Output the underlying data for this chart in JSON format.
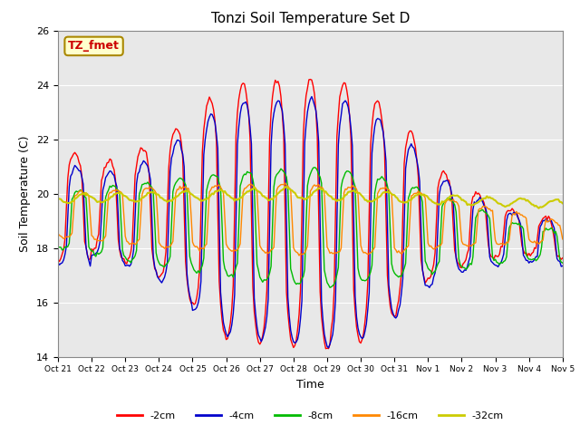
{
  "title": "Tonzi Soil Temperature Set D",
  "xlabel": "Time",
  "ylabel": "Soil Temperature (C)",
  "ylim": [
    14,
    26
  ],
  "xlim": [
    0,
    360
  ],
  "bg_color": "#e8e8e8",
  "fig_bg": "#ffffff",
  "annotation_text": "TZ_fmet",
  "annotation_bg": "#ffffcc",
  "annotation_border": "#aa8800",
  "annotation_color": "#cc0000",
  "lines": {
    "-2cm": {
      "color": "#ff0000",
      "lw": 1.0
    },
    "-4cm": {
      "color": "#0000cc",
      "lw": 1.0
    },
    "-8cm": {
      "color": "#00bb00",
      "lw": 1.0
    },
    "-16cm": {
      "color": "#ff8800",
      "lw": 1.0
    },
    "-32cm": {
      "color": "#cccc00",
      "lw": 1.5
    }
  },
  "tick_labels": [
    "Oct 21",
    "Oct 22",
    "Oct 23",
    "Oct 24",
    "Oct 25",
    "Oct 26",
    "Oct 27",
    "Oct 28",
    "Oct 29",
    "Oct 30",
    "Oct 31",
    "Nov 1",
    "Nov 2",
    "Nov 3",
    "Nov 4",
    "Nov 5"
  ],
  "tick_positions": [
    0,
    24,
    48,
    72,
    96,
    120,
    144,
    168,
    192,
    216,
    240,
    264,
    288,
    312,
    336,
    360
  ],
  "yticks": [
    14,
    16,
    18,
    20,
    22,
    24,
    26
  ],
  "grid_color": "#ffffff",
  "legend_labels": [
    "-2cm",
    "-4cm",
    "-8cm",
    "-16cm",
    "-32cm"
  ]
}
